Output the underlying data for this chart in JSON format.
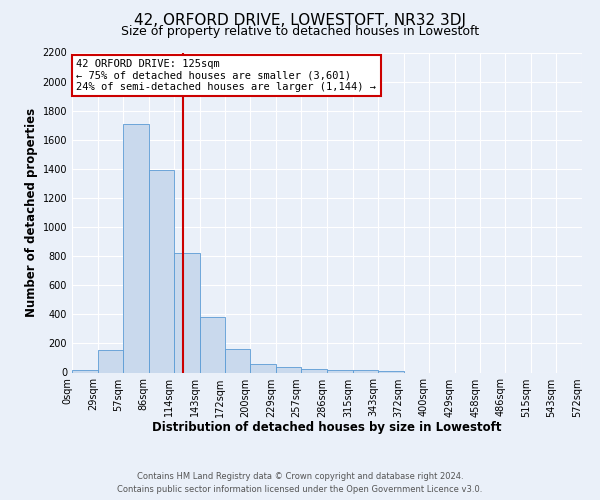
{
  "title": "42, ORFORD DRIVE, LOWESTOFT, NR32 3DJ",
  "subtitle": "Size of property relative to detached houses in Lowestoft",
  "xlabel": "Distribution of detached houses by size in Lowestoft",
  "ylabel": "Number of detached properties",
  "bar_edges": [
    0,
    29,
    57,
    86,
    114,
    143,
    172,
    200,
    229,
    257,
    286,
    315,
    343,
    372,
    400,
    429,
    458,
    486,
    515,
    543,
    572
  ],
  "bar_heights": [
    15,
    155,
    1710,
    1395,
    825,
    385,
    160,
    60,
    35,
    25,
    20,
    20,
    10,
    0,
    0,
    0,
    0,
    0,
    0,
    0
  ],
  "bar_color": "#c9d9ed",
  "bar_edgecolor": "#5b9bd5",
  "vertical_line_x": 125,
  "vertical_line_color": "#cc0000",
  "annotation_title": "42 ORFORD DRIVE: 125sqm",
  "annotation_line1": "← 75% of detached houses are smaller (3,601)",
  "annotation_line2": "24% of semi-detached houses are larger (1,144) →",
  "annotation_box_edgecolor": "#cc0000",
  "ylim": [
    0,
    2200
  ],
  "yticks": [
    0,
    200,
    400,
    600,
    800,
    1000,
    1200,
    1400,
    1600,
    1800,
    2000,
    2200
  ],
  "xtick_labels": [
    "0sqm",
    "29sqm",
    "57sqm",
    "86sqm",
    "114sqm",
    "143sqm",
    "172sqm",
    "200sqm",
    "229sqm",
    "257sqm",
    "286sqm",
    "315sqm",
    "343sqm",
    "372sqm",
    "400sqm",
    "429sqm",
    "458sqm",
    "486sqm",
    "515sqm",
    "543sqm",
    "572sqm"
  ],
  "footer_line1": "Contains HM Land Registry data © Crown copyright and database right 2024.",
  "footer_line2": "Contains public sector information licensed under the Open Government Licence v3.0.",
  "bg_color": "#eaf0f9",
  "plot_bg_color": "#eaf0f9",
  "title_fontsize": 11,
  "subtitle_fontsize": 9,
  "axis_label_fontsize": 8.5,
  "tick_fontsize": 7,
  "footer_fontsize": 6
}
